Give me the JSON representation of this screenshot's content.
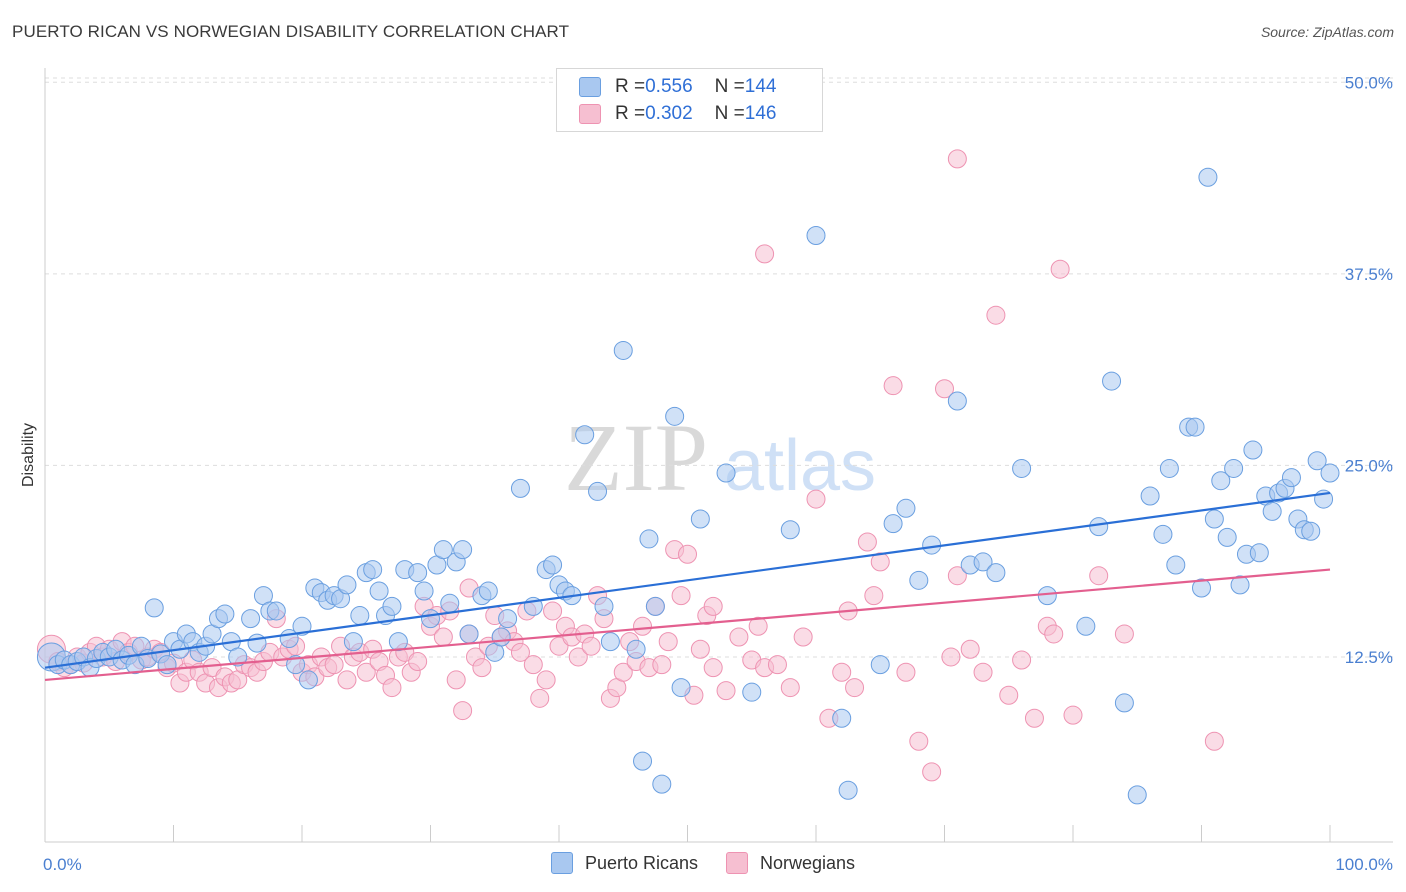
{
  "title": "PUERTO RICAN VS NORWEGIAN DISABILITY CORRELATION CHART",
  "source": "Source: ZipAtlas.com",
  "watermark": {
    "zip": "ZIP",
    "atlas": "atlas"
  },
  "colors": {
    "blue_fill": "#a9c8f0",
    "blue_stroke": "#6a9fe0",
    "blue_line": "#2a6fd6",
    "pink_fill": "#f6bfd1",
    "pink_stroke": "#ee93b2",
    "pink_line": "#e35f8f",
    "grid": "#dddddd",
    "tick_text": "#4a7fd0"
  },
  "legend": {
    "rows": [
      {
        "r_label": "R = ",
        "r_value": "0.556",
        "n_label": "N = ",
        "n_value": "144"
      },
      {
        "r_label": "R = ",
        "r_value": "0.302",
        "n_label": "N = ",
        "n_value": "146"
      }
    ],
    "bottom": [
      "Puerto Ricans",
      "Norwegians"
    ]
  },
  "chart_data": {
    "type": "scatter",
    "title": "PUERTO RICAN VS NORWEGIAN DISABILITY CORRELATION CHART",
    "xlabel": "",
    "ylabel": "Disability",
    "xlim": [
      0,
      100
    ],
    "ylim": [
      0,
      52
    ],
    "x_tick_labels": [
      "0.0%",
      "100.0%"
    ],
    "y_ticks": [
      12.5,
      25.0,
      37.5,
      50.0
    ],
    "y_tick_labels": [
      "12.5%",
      "25.0%",
      "37.5%",
      "50.0%"
    ],
    "grid": "horizontal dashed",
    "legend_position": "top-center",
    "series": [
      {
        "name": "Puerto Ricans",
        "r": 0.556,
        "n": 144,
        "trend": [
          [
            0,
            11.8
          ],
          [
            100,
            23.2
          ]
        ],
        "points": [
          [
            0.5,
            12.5
          ],
          [
            1,
            12
          ],
          [
            1.5,
            12.3
          ],
          [
            2,
            12
          ],
          [
            2.5,
            12.2
          ],
          [
            3,
            12.5
          ],
          [
            3.5,
            11.8
          ],
          [
            4,
            12.4
          ],
          [
            4.5,
            12.8
          ],
          [
            5,
            12.5
          ],
          [
            5.5,
            13
          ],
          [
            6,
            12.3
          ],
          [
            6.5,
            12.6
          ],
          [
            7,
            12
          ],
          [
            7.5,
            13.2
          ],
          [
            8,
            12.4
          ],
          [
            8.5,
            15.7
          ],
          [
            9,
            12.7
          ],
          [
            9.5,
            12
          ],
          [
            10,
            13.5
          ],
          [
            10.5,
            13
          ],
          [
            11,
            14
          ],
          [
            11.5,
            13.5
          ],
          [
            12,
            12.8
          ],
          [
            12.5,
            13.2
          ],
          [
            13,
            14
          ],
          [
            13.5,
            15
          ],
          [
            14,
            15.3
          ],
          [
            14.5,
            13.5
          ],
          [
            15,
            12.5
          ],
          [
            16,
            15
          ],
          [
            16.5,
            13.4
          ],
          [
            17,
            16.5
          ],
          [
            17.5,
            15.5
          ],
          [
            18,
            15.5
          ],
          [
            19,
            13.7
          ],
          [
            19.5,
            12
          ],
          [
            20,
            14.5
          ],
          [
            20.5,
            11
          ],
          [
            21,
            17
          ],
          [
            21.5,
            16.7
          ],
          [
            22,
            16.2
          ],
          [
            22.5,
            16.5
          ],
          [
            23,
            16.3
          ],
          [
            23.5,
            17.2
          ],
          [
            24,
            13.5
          ],
          [
            24.5,
            15.2
          ],
          [
            25,
            18
          ],
          [
            25.5,
            18.2
          ],
          [
            26,
            16.8
          ],
          [
            26.5,
            15.2
          ],
          [
            27,
            15.8
          ],
          [
            27.5,
            13.5
          ],
          [
            28,
            18.2
          ],
          [
            29,
            18
          ],
          [
            29.5,
            16.8
          ],
          [
            30,
            15
          ],
          [
            30.5,
            18.5
          ],
          [
            31,
            19.5
          ],
          [
            31.5,
            16
          ],
          [
            32,
            18.7
          ],
          [
            32.5,
            19.5
          ],
          [
            33,
            14
          ],
          [
            34,
            16.5
          ],
          [
            34.5,
            16.8
          ],
          [
            35,
            12.8
          ],
          [
            35.5,
            13.8
          ],
          [
            36,
            15
          ],
          [
            37,
            23.5
          ],
          [
            38,
            15.8
          ],
          [
            39,
            18.2
          ],
          [
            39.5,
            18.5
          ],
          [
            40,
            17.2
          ],
          [
            40.5,
            16.8
          ],
          [
            41,
            16.5
          ],
          [
            42,
            27
          ],
          [
            43,
            23.3
          ],
          [
            43.5,
            15.8
          ],
          [
            44,
            13.5
          ],
          [
            45,
            32.5
          ],
          [
            46,
            13
          ],
          [
            46.5,
            5.7
          ],
          [
            47,
            20.2
          ],
          [
            47.5,
            15.8
          ],
          [
            48,
            4.2
          ],
          [
            49,
            28.2
          ],
          [
            49.5,
            10.5
          ],
          [
            51,
            21.5
          ],
          [
            53,
            24.5
          ],
          [
            55,
            10.2
          ],
          [
            58,
            20.8
          ],
          [
            60,
            40
          ],
          [
            62,
            8.5
          ],
          [
            62.5,
            3.8
          ],
          [
            65,
            12
          ],
          [
            66,
            21.2
          ],
          [
            67,
            22.2
          ],
          [
            68,
            17.5
          ],
          [
            69,
            19.8
          ],
          [
            71,
            29.2
          ],
          [
            72,
            18.5
          ],
          [
            73,
            18.7
          ],
          [
            74,
            18
          ],
          [
            76,
            24.8
          ],
          [
            78,
            16.5
          ],
          [
            81,
            14.5
          ],
          [
            82,
            21
          ],
          [
            83,
            30.5
          ],
          [
            84,
            9.5
          ],
          [
            85,
            3.5
          ],
          [
            86,
            23
          ],
          [
            87,
            20.5
          ],
          [
            87.5,
            24.8
          ],
          [
            88,
            18.5
          ],
          [
            89,
            27.5
          ],
          [
            89.5,
            27.5
          ],
          [
            90,
            17
          ],
          [
            90.5,
            43.8
          ],
          [
            91,
            21.5
          ],
          [
            91.5,
            24
          ],
          [
            92,
            20.3
          ],
          [
            92.5,
            24.8
          ],
          [
            93,
            17.2
          ],
          [
            93.5,
            19.2
          ],
          [
            94,
            26
          ],
          [
            94.5,
            19.3
          ],
          [
            95,
            23
          ],
          [
            95.5,
            22
          ],
          [
            96,
            23.2
          ],
          [
            96.5,
            23.5
          ],
          [
            97,
            24.2
          ],
          [
            97.5,
            21.5
          ],
          [
            98,
            20.8
          ],
          [
            98.5,
            20.7
          ],
          [
            99,
            25.3
          ],
          [
            99.5,
            22.8
          ],
          [
            100,
            24.5
          ]
        ]
      },
      {
        "name": "Norwegians",
        "r": 0.302,
        "n": 146,
        "trend": [
          [
            0,
            11
          ],
          [
            100,
            18.2
          ]
        ],
        "points": [
          [
            0.5,
            13
          ],
          [
            1,
            12.2
          ],
          [
            1.5,
            11.8
          ],
          [
            2,
            12
          ],
          [
            2.5,
            12.5
          ],
          [
            3,
            12.1
          ],
          [
            3.5,
            12.8
          ],
          [
            4,
            13.2
          ],
          [
            4.5,
            12.5
          ],
          [
            5,
            13
          ],
          [
            5.5,
            12.2
          ],
          [
            6,
            13.5
          ],
          [
            6.5,
            12.8
          ],
          [
            7,
            13.2
          ],
          [
            7.5,
            12.3
          ],
          [
            8,
            12.5
          ],
          [
            8.5,
            13
          ],
          [
            9,
            12.8
          ],
          [
            9.5,
            11.8
          ],
          [
            10,
            12.1
          ],
          [
            10.5,
            10.8
          ],
          [
            11,
            11.5
          ],
          [
            11.5,
            12.3
          ],
          [
            12,
            11.5
          ],
          [
            12.5,
            10.8
          ],
          [
            13,
            11.8
          ],
          [
            13.5,
            10.5
          ],
          [
            14,
            11.2
          ],
          [
            14.5,
            10.8
          ],
          [
            15,
            11
          ],
          [
            15.5,
            12
          ],
          [
            16,
            11.8
          ],
          [
            16.5,
            11.5
          ],
          [
            17,
            12.2
          ],
          [
            17.5,
            12.8
          ],
          [
            18,
            15
          ],
          [
            18.5,
            12.5
          ],
          [
            19,
            13
          ],
          [
            19.5,
            13.2
          ],
          [
            20,
            11.5
          ],
          [
            20.5,
            12
          ],
          [
            21,
            11.2
          ],
          [
            21.5,
            12.5
          ],
          [
            22,
            11.8
          ],
          [
            22.5,
            12
          ],
          [
            23,
            13.2
          ],
          [
            23.5,
            11
          ],
          [
            24,
            12.5
          ],
          [
            24.5,
            12.8
          ],
          [
            25,
            11.5
          ],
          [
            25.5,
            13
          ],
          [
            26,
            12.2
          ],
          [
            26.5,
            11.3
          ],
          [
            27,
            10.5
          ],
          [
            27.5,
            12.5
          ],
          [
            28,
            12.8
          ],
          [
            28.5,
            11.5
          ],
          [
            29,
            12.2
          ],
          [
            29.5,
            15.8
          ],
          [
            30,
            14.5
          ],
          [
            30.5,
            15.2
          ],
          [
            31,
            13.8
          ],
          [
            31.5,
            15.5
          ],
          [
            32,
            11
          ],
          [
            32.5,
            9
          ],
          [
            33,
            14
          ],
          [
            33.5,
            12.5
          ],
          [
            34,
            11.8
          ],
          [
            34.5,
            13.2
          ],
          [
            35,
            15.2
          ],
          [
            35.5,
            13.8
          ],
          [
            36,
            14.2
          ],
          [
            36.5,
            13.5
          ],
          [
            37,
            12.8
          ],
          [
            37.5,
            15.5
          ],
          [
            38,
            12
          ],
          [
            38.5,
            9.8
          ],
          [
            39,
            11
          ],
          [
            39.5,
            15.5
          ],
          [
            40,
            13.2
          ],
          [
            40.5,
            14.5
          ],
          [
            41,
            13.8
          ],
          [
            41.5,
            12.5
          ],
          [
            42,
            14
          ],
          [
            42.5,
            13.2
          ],
          [
            43,
            16.5
          ],
          [
            43.5,
            15
          ],
          [
            44,
            9.8
          ],
          [
            44.5,
            10.5
          ],
          [
            45,
            11.5
          ],
          [
            45.5,
            13.5
          ],
          [
            46,
            12.2
          ],
          [
            46.5,
            14.5
          ],
          [
            47,
            11.8
          ],
          [
            47.5,
            15.8
          ],
          [
            48,
            12
          ],
          [
            48.5,
            13.5
          ],
          [
            49,
            19.5
          ],
          [
            49.5,
            16.5
          ],
          [
            50,
            19.2
          ],
          [
            50.5,
            10
          ],
          [
            51,
            13
          ],
          [
            51.5,
            15.2
          ],
          [
            52,
            15.8
          ],
          [
            53,
            10.3
          ],
          [
            54,
            13.8
          ],
          [
            55,
            12.3
          ],
          [
            55.5,
            14.5
          ],
          [
            56,
            11.8
          ],
          [
            57,
            12
          ],
          [
            58,
            10.5
          ],
          [
            59,
            13.8
          ],
          [
            60,
            22.8
          ],
          [
            61,
            8.5
          ],
          [
            62,
            11.5
          ],
          [
            62.5,
            15.5
          ],
          [
            63,
            10.5
          ],
          [
            64,
            20
          ],
          [
            64.5,
            16.5
          ],
          [
            65,
            18.7
          ],
          [
            66,
            30.2
          ],
          [
            67,
            11.5
          ],
          [
            68,
            7
          ],
          [
            69,
            5
          ],
          [
            70,
            30
          ],
          [
            70.5,
            12.5
          ],
          [
            71,
            17.8
          ],
          [
            72,
            13
          ],
          [
            73,
            11.5
          ],
          [
            74,
            34.8
          ],
          [
            75,
            10
          ],
          [
            76,
            12.3
          ],
          [
            77,
            8.5
          ],
          [
            78,
            14.5
          ],
          [
            78.5,
            14
          ],
          [
            79,
            37.8
          ],
          [
            80,
            8.7
          ],
          [
            82,
            17.8
          ],
          [
            84,
            14
          ],
          [
            91,
            7
          ],
          [
            56,
            38.8
          ],
          [
            71,
            45
          ],
          [
            33,
            17
          ],
          [
            52,
            11.8
          ]
        ]
      }
    ]
  }
}
